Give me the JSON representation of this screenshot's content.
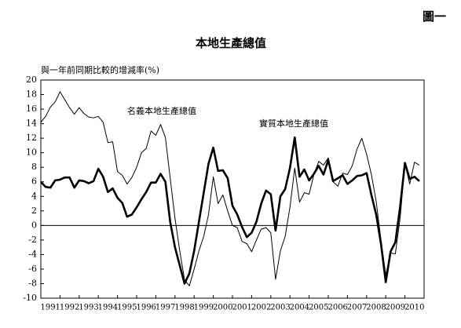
{
  "figure_label": "圖一",
  "chart_data": {
    "type": "line",
    "title": "本地生產總值",
    "y_label": "與一年前同期比較的增減率(%)",
    "categories": [
      null,
      null,
      "1991",
      null,
      null,
      null,
      "1992",
      null,
      null,
      null,
      "1993",
      null,
      null,
      null,
      "1994",
      null,
      null,
      null,
      "1995",
      null,
      null,
      null,
      "1996",
      null,
      null,
      null,
      "1997",
      null,
      null,
      null,
      "1998",
      null,
      null,
      null,
      "1999",
      null,
      null,
      null,
      "2000",
      null,
      null,
      null,
      "2001",
      null,
      null,
      null,
      "2002",
      null,
      null,
      null,
      "2003",
      null,
      null,
      null,
      "2004",
      null,
      null,
      null,
      "2005",
      null,
      null,
      null,
      "2006",
      null,
      null,
      null,
      "2007",
      null,
      null,
      null,
      "2008",
      null,
      null,
      null,
      "2009",
      null,
      null,
      null,
      "2010",
      null
    ],
    "series": [
      {
        "name": "名義本地生產總值",
        "color": "#000000",
        "values": [
          14.2,
          15.0,
          16.3,
          17.0,
          18.4,
          17.3,
          16.2,
          15.3,
          16.2,
          15.4,
          14.9,
          14.8,
          15.0,
          14.2,
          11.4,
          11.5,
          7.4,
          6.9,
          5.7,
          6.6,
          8.0,
          10.0,
          10.6,
          13.0,
          12.4,
          13.9,
          12.1,
          6.5,
          1.0,
          -3.5,
          -7.5,
          -8.3,
          -6.0,
          -3.5,
          -1.5,
          1.5,
          6.7,
          3.0,
          4.2,
          2.0,
          0.0,
          -0.3,
          -2.2,
          -2.5,
          -3.6,
          -2.0,
          -0.5,
          -0.3,
          -1.0,
          -7.4,
          -3.5,
          -1.5,
          2.5,
          7.9,
          3.2,
          4.5,
          4.3,
          7.0,
          8.8,
          8.3,
          9.3,
          6.0,
          5.4,
          7.2,
          7.0,
          8.2,
          10.5,
          12.0,
          9.8,
          7.0,
          3.3,
          -2.0,
          -6.8,
          -3.8,
          -3.9,
          1.0,
          8.5,
          5.7,
          8.7,
          8.3
        ]
      },
      {
        "name": "實質本地生產總值",
        "color": "#000000",
        "values": [
          6.0,
          5.3,
          5.2,
          6.2,
          6.3,
          6.6,
          6.6,
          5.2,
          6.2,
          6.1,
          5.8,
          6.1,
          7.8,
          6.7,
          4.6,
          5.1,
          3.8,
          3.1,
          1.2,
          1.5,
          2.5,
          3.6,
          4.6,
          5.9,
          5.9,
          7.1,
          6.0,
          0.5,
          -3.0,
          -5.5,
          -8.0,
          -6.6,
          -3.5,
          0.5,
          4.5,
          8.5,
          10.7,
          7.5,
          7.6,
          6.5,
          2.7,
          1.5,
          -0.2,
          -1.6,
          -1.0,
          0.5,
          3.0,
          4.8,
          4.3,
          -0.7,
          4.0,
          5.0,
          7.9,
          12.1,
          6.7,
          7.7,
          6.2,
          7.1,
          8.2,
          7.0,
          9.0,
          6.1,
          6.5,
          6.9,
          5.7,
          6.2,
          6.8,
          6.9,
          7.2,
          4.2,
          1.5,
          -2.5,
          -7.8,
          -3.6,
          -2.3,
          2.6,
          8.6,
          6.4,
          6.7,
          6.1
        ]
      }
    ],
    "ylim": [
      -10,
      20
    ],
    "yticks": [
      -10,
      -8,
      -6,
      -4,
      -2,
      0,
      2,
      4,
      6,
      8,
      10,
      12,
      14,
      16,
      18,
      20
    ],
    "reference_line": 0,
    "grid": false
  }
}
